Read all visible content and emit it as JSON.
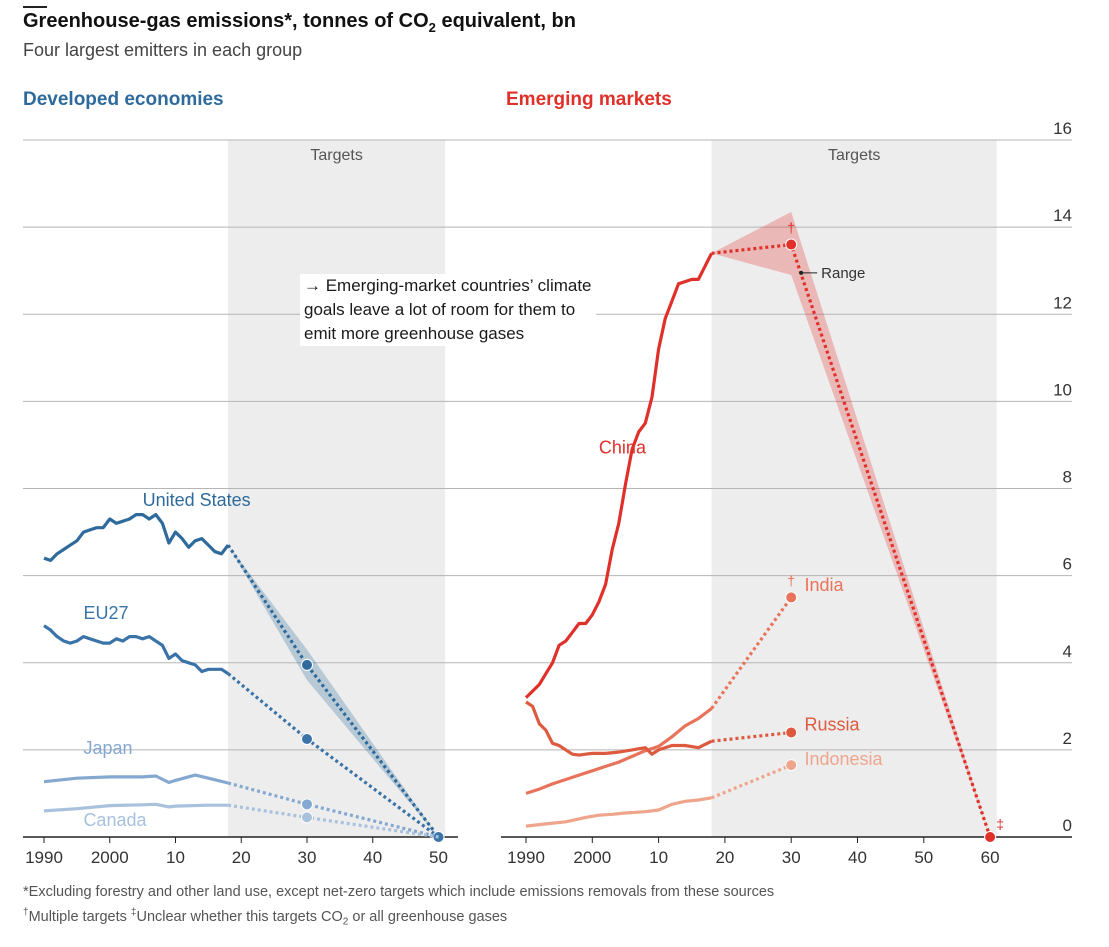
{
  "header": {
    "title_pre": "Greenhouse-gas emissions*, tonnes of CO",
    "title_sub": "2",
    "title_post": " equivalent, bn",
    "subtitle": "Four largest emitters in each group"
  },
  "panels": {
    "developed_label": "Developed economies",
    "emerging_label": "Emerging markets",
    "targets_label": "Targets"
  },
  "annotation": {
    "lines": [
      "→ Emerging-market countries’ climate",
      "goals leave a lot of room for them to",
      "emit more greenhouse gases"
    ],
    "range_label": "Range"
  },
  "footnotes": {
    "line1": "*Excluding forestry and other land use, except net-zero targets which include emissions removals from these sources",
    "line2_a_mark": "†",
    "line2_a": "Multiple targets ",
    "line2_b_mark": "‡",
    "line2_b_pre": "Unclear whether this targets CO",
    "line2_b_sub": "2",
    "line2_b_post": " or all greenhouse gases"
  },
  "colors": {
    "united_states": "#2e6a9c",
    "eu27": "#3a73a8",
    "japan": "#84a8cf",
    "canada": "#a8c1dd",
    "china": "#e0302a",
    "india": "#e9735a",
    "russia": "#dd5a3f",
    "indonesia": "#eea58c",
    "target_band": "#ededed",
    "gridline": "#b5b5b5"
  },
  "chart_data": [
    {
      "type": "line",
      "panel": "Developed economies",
      "y_axis": {
        "ylim": [
          0,
          16
        ],
        "ticks": [
          0,
          2,
          4,
          6,
          8,
          10,
          12,
          14,
          16
        ]
      },
      "x_axis": {
        "xlim": [
          1990,
          2050
        ],
        "tick_labels": [
          "1990",
          "2000",
          "10",
          "20",
          "30",
          "40",
          "50"
        ],
        "tick_values": [
          1990,
          2000,
          2010,
          2020,
          2030,
          2040,
          2050
        ]
      },
      "targets_band": [
        2018,
        2051
      ],
      "series": [
        {
          "name": "United States",
          "color_key": "united_states",
          "label_pos": [
            2005,
            7.6
          ],
          "historic": {
            "x": [
              1990,
              1991,
              1992,
              1993,
              1994,
              1995,
              1996,
              1997,
              1998,
              1999,
              2000,
              2001,
              2002,
              2003,
              2004,
              2005,
              2006,
              2007,
              2008,
              2009,
              2010,
              2011,
              2012,
              2013,
              2014,
              2015,
              2016,
              2017,
              2018
            ],
            "y": [
              6.4,
              6.35,
              6.5,
              6.6,
              6.7,
              6.8,
              7.0,
              7.05,
              7.1,
              7.1,
              7.3,
              7.2,
              7.25,
              7.3,
              7.4,
              7.4,
              7.3,
              7.4,
              7.2,
              6.75,
              7.0,
              6.85,
              6.65,
              6.8,
              6.85,
              6.7,
              6.55,
              6.5,
              6.7
            ]
          },
          "target": {
            "x": [
              2018,
              2030,
              2050
            ],
            "y": [
              6.7,
              3.95,
              0
            ],
            "markers": [
              2030,
              2050
            ]
          },
          "range": {
            "x": [
              2018,
              2030,
              2050
            ],
            "lo": [
              6.7,
              3.6,
              0
            ],
            "hi": [
              6.7,
              4.3,
              0
            ]
          }
        },
        {
          "name": "EU27",
          "color_key": "eu27",
          "label_pos": [
            1996,
            5.0
          ],
          "historic": {
            "x": [
              1990,
              1991,
              1992,
              1993,
              1994,
              1995,
              1996,
              1997,
              1998,
              1999,
              2000,
              2001,
              2002,
              2003,
              2004,
              2005,
              2006,
              2007,
              2008,
              2009,
              2010,
              2011,
              2012,
              2013,
              2014,
              2015,
              2016,
              2017,
              2018
            ],
            "y": [
              4.85,
              4.75,
              4.6,
              4.5,
              4.45,
              4.5,
              4.6,
              4.55,
              4.5,
              4.45,
              4.45,
              4.55,
              4.5,
              4.6,
              4.6,
              4.55,
              4.6,
              4.5,
              4.4,
              4.1,
              4.2,
              4.05,
              4.0,
              3.95,
              3.8,
              3.85,
              3.85,
              3.85,
              3.75
            ]
          },
          "target": {
            "x": [
              2018,
              2030,
              2050
            ],
            "y": [
              3.75,
              2.25,
              0
            ],
            "markers": [
              2030,
              2050
            ]
          }
        },
        {
          "name": "Japan",
          "color_key": "japan",
          "label_pos": [
            1996,
            1.9
          ],
          "historic": {
            "x": [
              1990,
              1995,
              2000,
              2005,
              2007,
              2009,
              2010,
              2013,
              2015,
              2018
            ],
            "y": [
              1.27,
              1.35,
              1.38,
              1.38,
              1.4,
              1.25,
              1.3,
              1.42,
              1.35,
              1.24
            ]
          },
          "target": {
            "x": [
              2018,
              2030,
              2050
            ],
            "y": [
              1.24,
              0.75,
              0
            ],
            "markers": [
              2030
            ]
          }
        },
        {
          "name": "Canada",
          "color_key": "canada",
          "label_pos": [
            1996,
            0.25
          ],
          "historic": {
            "x": [
              1990,
              1995,
              2000,
              2005,
              2007,
              2009,
              2010,
              2015,
              2018
            ],
            "y": [
              0.6,
              0.65,
              0.72,
              0.74,
              0.75,
              0.69,
              0.71,
              0.73,
              0.73
            ]
          },
          "target": {
            "x": [
              2018,
              2030,
              2050
            ],
            "y": [
              0.73,
              0.45,
              0
            ],
            "markers": [
              2030
            ]
          }
        }
      ]
    },
    {
      "type": "line",
      "panel": "Emerging markets",
      "y_axis": {
        "ylim": [
          0,
          16
        ],
        "ticks": [
          0,
          2,
          4,
          6,
          8,
          10,
          12,
          14,
          16
        ]
      },
      "x_axis": {
        "xlim": [
          1990,
          2060
        ],
        "tick_labels": [
          "1990",
          "2000",
          "10",
          "20",
          "30",
          "40",
          "50",
          "60"
        ],
        "tick_values": [
          1990,
          2000,
          2010,
          2020,
          2030,
          2040,
          2050,
          2060
        ]
      },
      "targets_band": [
        2018,
        2061
      ],
      "series": [
        {
          "name": "China",
          "color_key": "china",
          "label_pos": [
            2001,
            8.8
          ],
          "historic": {
            "x": [
              1990,
              1991,
              1992,
              1993,
              1994,
              1995,
              1996,
              1997,
              1998,
              1999,
              2000,
              2001,
              2002,
              2003,
              2004,
              2005,
              2006,
              2007,
              2008,
              2009,
              2010,
              2011,
              2012,
              2013,
              2014,
              2015,
              2016,
              2017,
              2018
            ],
            "y": [
              3.2,
              3.35,
              3.5,
              3.75,
              4.0,
              4.4,
              4.5,
              4.7,
              4.9,
              4.9,
              5.1,
              5.4,
              5.8,
              6.6,
              7.2,
              8.1,
              8.9,
              9.3,
              9.5,
              10.1,
              11.2,
              11.9,
              12.3,
              12.7,
              12.75,
              12.8,
              12.8,
              13.1,
              13.4
            ]
          },
          "target": {
            "x": [
              2018,
              2030,
              2060
            ],
            "y": [
              13.4,
              13.6,
              0
            ],
            "markers": [
              2030,
              2060
            ],
            "marks": [
              "†",
              "‡"
            ]
          },
          "range": {
            "x": [
              2018,
              2030,
              2060
            ],
            "lo": [
              13.4,
              12.9,
              0
            ],
            "hi": [
              13.4,
              14.35,
              0
            ]
          }
        },
        {
          "name": "India",
          "color_key": "india",
          "label_pos": [
            2032,
            5.65
          ],
          "historic": {
            "x": [
              1990,
              1992,
              1994,
              1996,
              1998,
              2000,
              2002,
              2004,
              2006,
              2008,
              2010,
              2012,
              2014,
              2016,
              2018
            ],
            "y": [
              1.0,
              1.1,
              1.22,
              1.32,
              1.42,
              1.52,
              1.62,
              1.72,
              1.85,
              1.98,
              2.08,
              2.3,
              2.55,
              2.72,
              2.95
            ]
          },
          "target": {
            "x": [
              2018,
              2030
            ],
            "y": [
              2.95,
              5.5
            ],
            "markers": [
              2030
            ],
            "marks": [
              "†"
            ]
          }
        },
        {
          "name": "Russia",
          "color_key": "russia",
          "label_pos": [
            2032,
            2.45
          ],
          "historic": {
            "x": [
              1990,
              1991,
              1992,
              1993,
              1994,
              1995,
              1996,
              1997,
              1998,
              1999,
              2000,
              2002,
              2004,
              2006,
              2008,
              2009,
              2010,
              2012,
              2014,
              2016,
              2018
            ],
            "y": [
              3.1,
              3.0,
              2.6,
              2.45,
              2.15,
              2.1,
              2.0,
              1.9,
              1.88,
              1.9,
              1.92,
              1.92,
              1.95,
              2.0,
              2.05,
              1.9,
              2.0,
              2.1,
              2.1,
              2.05,
              2.2
            ]
          },
          "target": {
            "x": [
              2018,
              2030
            ],
            "y": [
              2.2,
              2.4
            ],
            "markers": [
              2030
            ]
          }
        },
        {
          "name": "Indonesia",
          "color_key": "indonesia",
          "label_pos": [
            2032,
            1.65
          ],
          "historic": {
            "x": [
              1990,
              1993,
              1996,
              1999,
              2001,
              2003,
              2005,
              2008,
              2010,
              2012,
              2014,
              2016,
              2018
            ],
            "y": [
              0.25,
              0.3,
              0.35,
              0.45,
              0.5,
              0.52,
              0.55,
              0.58,
              0.62,
              0.75,
              0.82,
              0.85,
              0.9
            ]
          },
          "target": {
            "x": [
              2018,
              2030
            ],
            "y": [
              0.9,
              1.65
            ],
            "markers": [
              2030
            ]
          }
        }
      ]
    }
  ]
}
